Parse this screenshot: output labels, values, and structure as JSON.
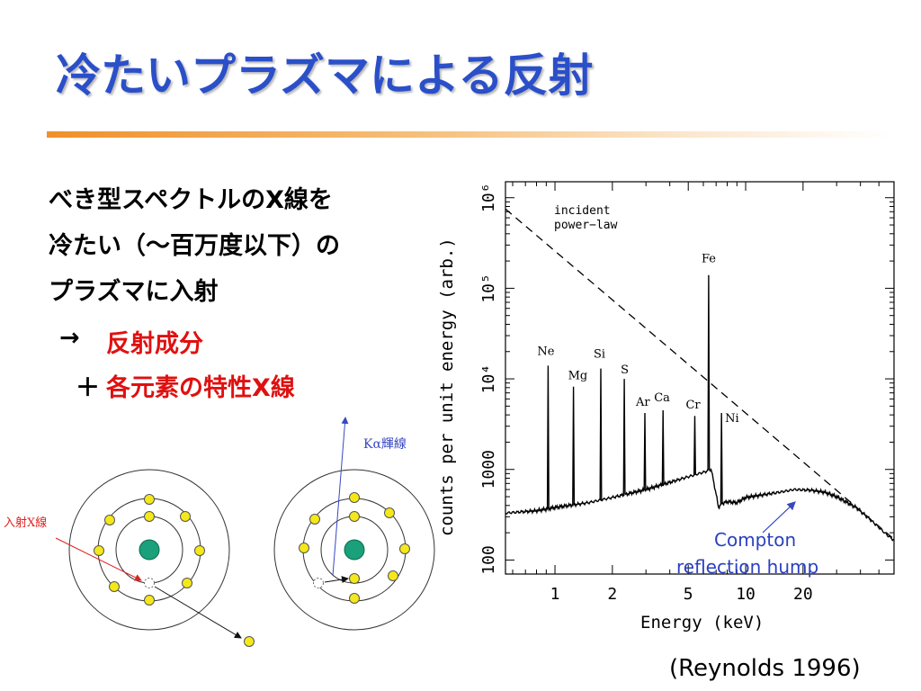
{
  "slide": {
    "title": "冷たいプラズマによる反射",
    "body_lines": [
      "べき型スペクトルのX線を",
      "冷たい（～百万度以下）の",
      "プラズマに入射"
    ],
    "arrow_symbol": "→",
    "result_line_1": "反射成分",
    "plus_symbol": "＋",
    "result_line_2": "各元素の特性X線",
    "citation": "(Reynolds 1996)",
    "accent_color": "#2a4fc9",
    "highlight_color": "#e01010"
  },
  "diagram": {
    "incident_label": "入射X線",
    "emission_label": "Kα輝線"
  },
  "chart_data": {
    "type": "line",
    "xlabel": "Energy (keV)",
    "ylabel": "counts per unit energy (arb.)",
    "x_scale": "log",
    "y_scale": "log",
    "xlim": [
      0.55,
      60
    ],
    "ylim": [
      70,
      1500000
    ],
    "x_ticks": [
      1,
      2,
      5,
      10,
      20
    ],
    "x_tick_labels": [
      "1",
      "2",
      "5",
      "10",
      "20"
    ],
    "y_ticks": [
      100,
      1000,
      10000,
      100000,
      1000000
    ],
    "y_tick_labels": [
      "100",
      "1000",
      "10⁴",
      "10⁵",
      "10⁶"
    ],
    "annotations": {
      "incident_line1": "incident",
      "incident_line2": "power−law",
      "compton_line1": "Compton",
      "compton_line2": "reflection hump"
    },
    "series": [
      {
        "name": "incident power−law",
        "style": "dashed",
        "x": [
          0.55,
          60
        ],
        "y": [
          750000,
          170
        ]
      },
      {
        "name": "reflection",
        "style": "solid",
        "x": [
          0.55,
          0.8,
          1.0,
          1.5,
          2.0,
          3.0,
          4.0,
          5.0,
          5.5,
          6.2,
          6.35,
          6.45,
          6.6,
          7.11,
          7.2,
          7.5,
          8.0,
          9.0,
          10.0,
          12.0,
          15.0,
          18.0,
          22.0,
          26.0,
          30.0,
          38.0,
          45.0,
          55.0,
          60.0
        ],
        "y": [
          330,
          350,
          380,
          430,
          490,
          600,
          720,
          830,
          880,
          950,
          980,
          1000,
          1000,
          450,
          380,
          420,
          440,
          430,
          490,
          520,
          560,
          600,
          590,
          560,
          500,
          380,
          280,
          190,
          165
        ]
      }
    ],
    "lines": [
      {
        "element": "Ne",
        "energy": 0.92,
        "peak": 14000
      },
      {
        "element": "Mg",
        "energy": 1.25,
        "peak": 8200
      },
      {
        "element": "Si",
        "energy": 1.74,
        "peak": 13000
      },
      {
        "element": "S",
        "energy": 2.31,
        "peak": 10000
      },
      {
        "element": "Ar",
        "energy": 2.96,
        "peak": 4200
      },
      {
        "element": "Ca",
        "energy": 3.69,
        "peak": 4500
      },
      {
        "element": "Cr",
        "energy": 5.41,
        "peak": 3900
      },
      {
        "element": "Fe",
        "energy": 6.4,
        "peak": 140000
      },
      {
        "element": "Ni",
        "energy": 7.47,
        "peak": 4200
      }
    ]
  }
}
